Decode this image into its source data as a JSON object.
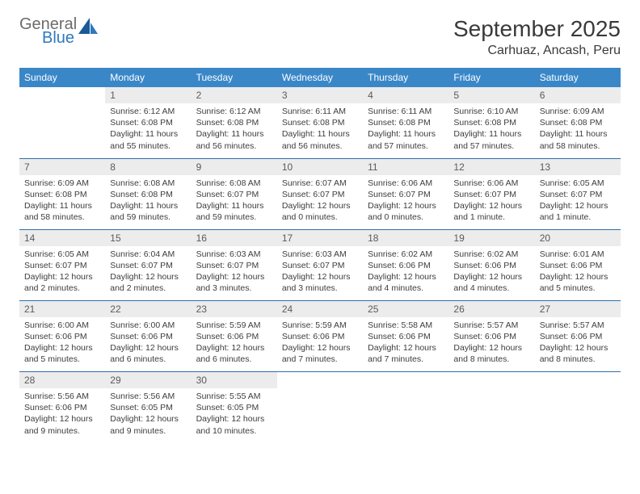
{
  "brand": {
    "line1": "General",
    "line2": "Blue"
  },
  "title": "September 2025",
  "location": "Carhuaz, Ancash, Peru",
  "colors": {
    "header_bg": "#3a87c8",
    "header_text": "#ffffff",
    "divider": "#2f6fab",
    "daynum_bg": "#ececec",
    "text": "#333333",
    "logo_gray": "#6b6b6b",
    "logo_blue": "#2f78bf",
    "logo_accent": "#1b5a96"
  },
  "weekdays": [
    "Sunday",
    "Monday",
    "Tuesday",
    "Wednesday",
    "Thursday",
    "Friday",
    "Saturday"
  ],
  "weeks": [
    [
      null,
      {
        "n": "1",
        "sr": "Sunrise: 6:12 AM",
        "ss": "Sunset: 6:08 PM",
        "dl": "Daylight: 11 hours and 55 minutes."
      },
      {
        "n": "2",
        "sr": "Sunrise: 6:12 AM",
        "ss": "Sunset: 6:08 PM",
        "dl": "Daylight: 11 hours and 56 minutes."
      },
      {
        "n": "3",
        "sr": "Sunrise: 6:11 AM",
        "ss": "Sunset: 6:08 PM",
        "dl": "Daylight: 11 hours and 56 minutes."
      },
      {
        "n": "4",
        "sr": "Sunrise: 6:11 AM",
        "ss": "Sunset: 6:08 PM",
        "dl": "Daylight: 11 hours and 57 minutes."
      },
      {
        "n": "5",
        "sr": "Sunrise: 6:10 AM",
        "ss": "Sunset: 6:08 PM",
        "dl": "Daylight: 11 hours and 57 minutes."
      },
      {
        "n": "6",
        "sr": "Sunrise: 6:09 AM",
        "ss": "Sunset: 6:08 PM",
        "dl": "Daylight: 11 hours and 58 minutes."
      }
    ],
    [
      {
        "n": "7",
        "sr": "Sunrise: 6:09 AM",
        "ss": "Sunset: 6:08 PM",
        "dl": "Daylight: 11 hours and 58 minutes."
      },
      {
        "n": "8",
        "sr": "Sunrise: 6:08 AM",
        "ss": "Sunset: 6:08 PM",
        "dl": "Daylight: 11 hours and 59 minutes."
      },
      {
        "n": "9",
        "sr": "Sunrise: 6:08 AM",
        "ss": "Sunset: 6:07 PM",
        "dl": "Daylight: 11 hours and 59 minutes."
      },
      {
        "n": "10",
        "sr": "Sunrise: 6:07 AM",
        "ss": "Sunset: 6:07 PM",
        "dl": "Daylight: 12 hours and 0 minutes."
      },
      {
        "n": "11",
        "sr": "Sunrise: 6:06 AM",
        "ss": "Sunset: 6:07 PM",
        "dl": "Daylight: 12 hours and 0 minutes."
      },
      {
        "n": "12",
        "sr": "Sunrise: 6:06 AM",
        "ss": "Sunset: 6:07 PM",
        "dl": "Daylight: 12 hours and 1 minute."
      },
      {
        "n": "13",
        "sr": "Sunrise: 6:05 AM",
        "ss": "Sunset: 6:07 PM",
        "dl": "Daylight: 12 hours and 1 minute."
      }
    ],
    [
      {
        "n": "14",
        "sr": "Sunrise: 6:05 AM",
        "ss": "Sunset: 6:07 PM",
        "dl": "Daylight: 12 hours and 2 minutes."
      },
      {
        "n": "15",
        "sr": "Sunrise: 6:04 AM",
        "ss": "Sunset: 6:07 PM",
        "dl": "Daylight: 12 hours and 2 minutes."
      },
      {
        "n": "16",
        "sr": "Sunrise: 6:03 AM",
        "ss": "Sunset: 6:07 PM",
        "dl": "Daylight: 12 hours and 3 minutes."
      },
      {
        "n": "17",
        "sr": "Sunrise: 6:03 AM",
        "ss": "Sunset: 6:07 PM",
        "dl": "Daylight: 12 hours and 3 minutes."
      },
      {
        "n": "18",
        "sr": "Sunrise: 6:02 AM",
        "ss": "Sunset: 6:06 PM",
        "dl": "Daylight: 12 hours and 4 minutes."
      },
      {
        "n": "19",
        "sr": "Sunrise: 6:02 AM",
        "ss": "Sunset: 6:06 PM",
        "dl": "Daylight: 12 hours and 4 minutes."
      },
      {
        "n": "20",
        "sr": "Sunrise: 6:01 AM",
        "ss": "Sunset: 6:06 PM",
        "dl": "Daylight: 12 hours and 5 minutes."
      }
    ],
    [
      {
        "n": "21",
        "sr": "Sunrise: 6:00 AM",
        "ss": "Sunset: 6:06 PM",
        "dl": "Daylight: 12 hours and 5 minutes."
      },
      {
        "n": "22",
        "sr": "Sunrise: 6:00 AM",
        "ss": "Sunset: 6:06 PM",
        "dl": "Daylight: 12 hours and 6 minutes."
      },
      {
        "n": "23",
        "sr": "Sunrise: 5:59 AM",
        "ss": "Sunset: 6:06 PM",
        "dl": "Daylight: 12 hours and 6 minutes."
      },
      {
        "n": "24",
        "sr": "Sunrise: 5:59 AM",
        "ss": "Sunset: 6:06 PM",
        "dl": "Daylight: 12 hours and 7 minutes."
      },
      {
        "n": "25",
        "sr": "Sunrise: 5:58 AM",
        "ss": "Sunset: 6:06 PM",
        "dl": "Daylight: 12 hours and 7 minutes."
      },
      {
        "n": "26",
        "sr": "Sunrise: 5:57 AM",
        "ss": "Sunset: 6:06 PM",
        "dl": "Daylight: 12 hours and 8 minutes."
      },
      {
        "n": "27",
        "sr": "Sunrise: 5:57 AM",
        "ss": "Sunset: 6:06 PM",
        "dl": "Daylight: 12 hours and 8 minutes."
      }
    ],
    [
      {
        "n": "28",
        "sr": "Sunrise: 5:56 AM",
        "ss": "Sunset: 6:06 PM",
        "dl": "Daylight: 12 hours and 9 minutes."
      },
      {
        "n": "29",
        "sr": "Sunrise: 5:56 AM",
        "ss": "Sunset: 6:05 PM",
        "dl": "Daylight: 12 hours and 9 minutes."
      },
      {
        "n": "30",
        "sr": "Sunrise: 5:55 AM",
        "ss": "Sunset: 6:05 PM",
        "dl": "Daylight: 12 hours and 10 minutes."
      },
      null,
      null,
      null,
      null
    ]
  ]
}
